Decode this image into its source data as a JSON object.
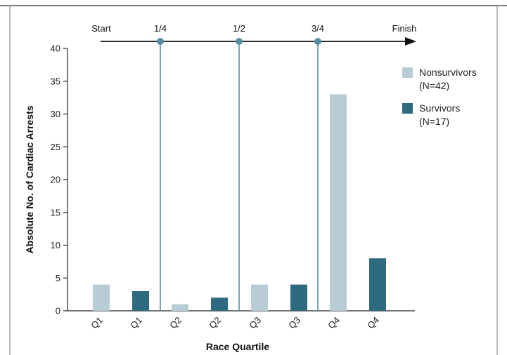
{
  "chart_data": {
    "type": "bar",
    "xlabel": "Race Quartile",
    "ylabel": "Absolute No. of Cardiac Arrests",
    "ylim": [
      0,
      40
    ],
    "yticks": [
      0,
      5,
      10,
      15,
      20,
      25,
      30,
      35,
      40
    ],
    "categories": [
      "Q1",
      "Q1",
      "Q2",
      "Q2",
      "Q3",
      "Q3",
      "Q4",
      "Q4"
    ],
    "values": [
      4,
      3,
      1,
      2,
      4,
      4,
      33,
      8
    ],
    "bar_series": [
      0,
      1,
      0,
      1,
      0,
      1,
      0,
      1
    ],
    "series": [
      {
        "name": "Nonsurvivors",
        "count_label": "(N=42)",
        "color": "#b8ccd6"
      },
      {
        "name": "Survivors",
        "count_label": "(N=17)",
        "color": "#2e6a80"
      }
    ],
    "timeline": {
      "labels": [
        "Start",
        "1/4",
        "1/2",
        "3/4",
        "Finish"
      ],
      "marker_color": "#5a8fa3"
    },
    "legend_position": "top-right",
    "grid": false
  }
}
